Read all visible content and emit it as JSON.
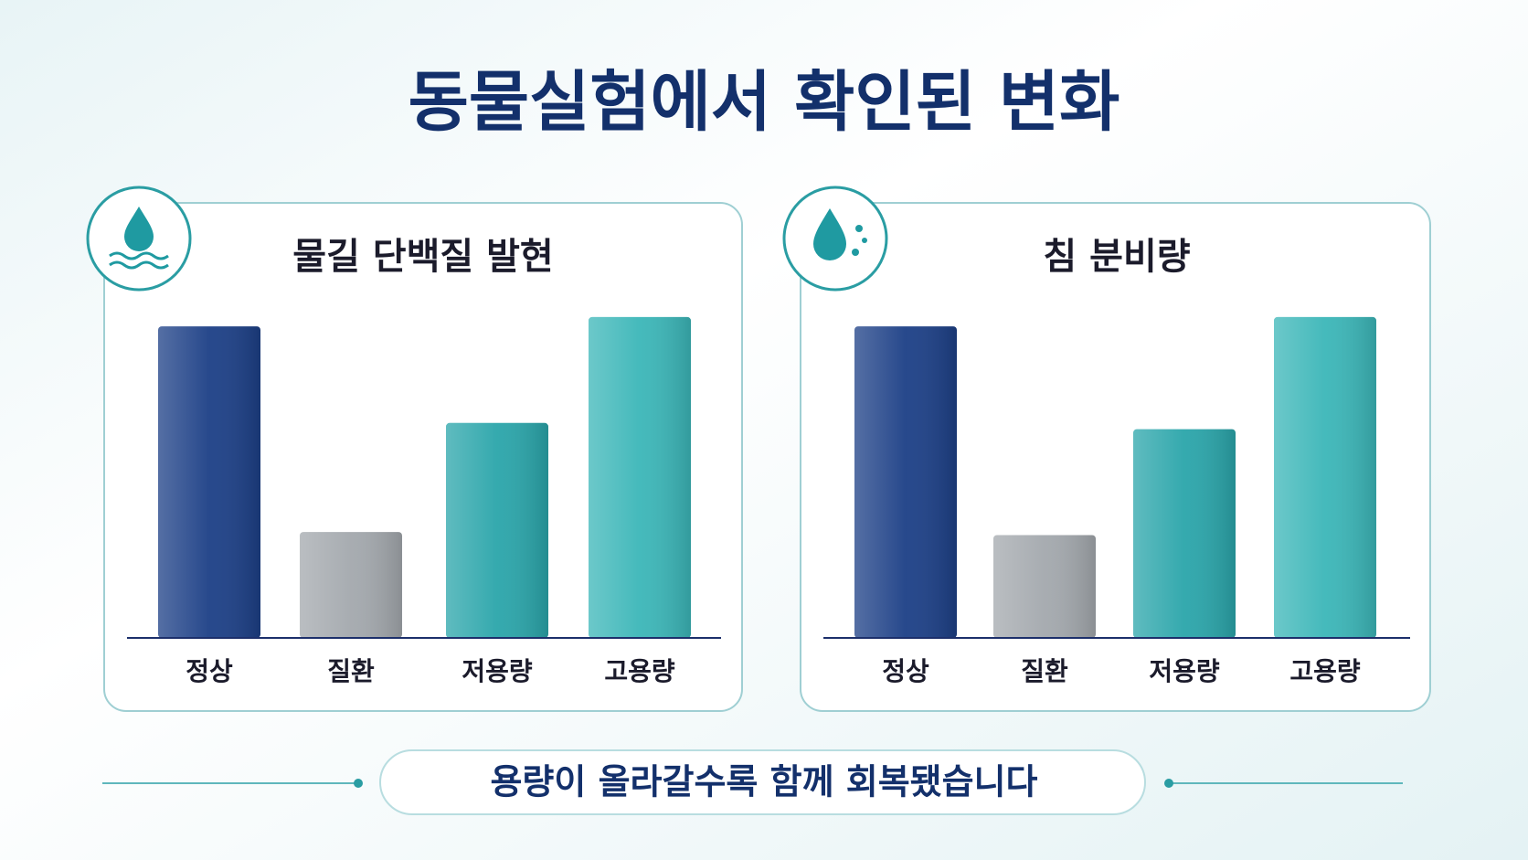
{
  "title": "동물실험에서 확인된 변화",
  "chart_data": [
    {
      "type": "bar",
      "title": "물길 단백질 발현",
      "categories": [
        "정상",
        "질환",
        "저용량",
        "고용량"
      ],
      "values": [
        100,
        34,
        69,
        103
      ],
      "colors": [
        "#1c3f86",
        "#a3a8ad",
        "#2aa5aa",
        "#3bb6b8"
      ],
      "ylim": [
        0,
        110
      ]
    },
    {
      "type": "bar",
      "title": "침 분비량",
      "categories": [
        "정상",
        "질환",
        "저용량",
        "고용량"
      ],
      "values": [
        100,
        33,
        67,
        103
      ],
      "colors": [
        "#1c3f86",
        "#a3a8ad",
        "#2aa5aa",
        "#3bb6b8"
      ],
      "ylim": [
        0,
        110
      ]
    }
  ],
  "caption": "용량이 올라갈수록 함께 회복됐습니다"
}
